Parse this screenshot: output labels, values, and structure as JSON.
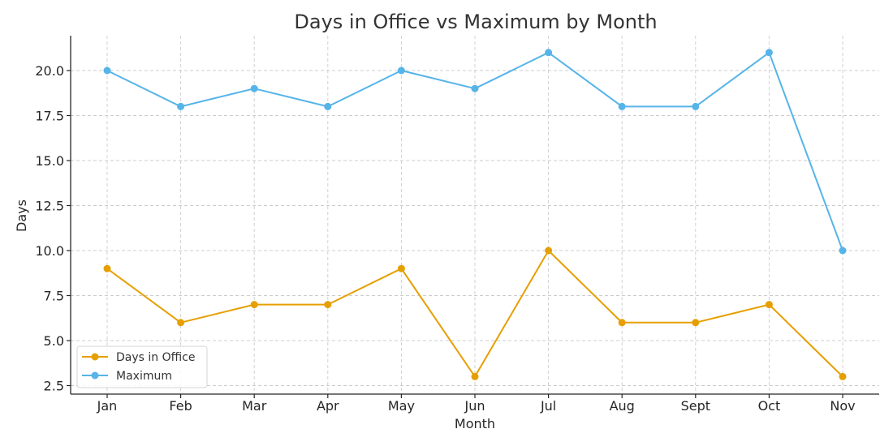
{
  "chart_data": {
    "type": "line",
    "title": "Days in Office vs Maximum by Month",
    "xlabel": "Month",
    "ylabel": "Days",
    "categories": [
      "Jan",
      "Feb",
      "Mar",
      "Apr",
      "May",
      "Jun",
      "Jul",
      "Aug",
      "Sept",
      "Oct",
      "Nov"
    ],
    "series": [
      {
        "name": "Days in Office",
        "color": "#E69F00",
        "values": [
          9,
          6,
          7,
          7,
          9,
          3,
          10,
          6,
          6,
          7,
          3
        ]
      },
      {
        "name": "Maximum",
        "color": "#56B4E9",
        "values": [
          20,
          18,
          19,
          18,
          20,
          19,
          21,
          18,
          18,
          21,
          10
        ]
      }
    ],
    "yticks": [
      "2.5",
      "5.0",
      "7.5",
      "10.0",
      "12.5",
      "15.0",
      "17.5",
      "20.0"
    ],
    "ylim": [
      2.2,
      22
    ],
    "grid": true,
    "legend_position": "lower left"
  }
}
